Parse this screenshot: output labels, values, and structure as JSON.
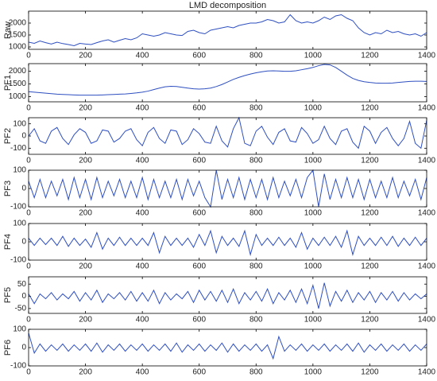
{
  "chart_data": [
    {
      "type": "line",
      "title": "LMD decomposition",
      "ylabel": "Raw",
      "color": "#2e4fc0",
      "x": [
        0,
        20,
        40,
        60,
        80,
        100,
        120,
        140,
        160,
        180,
        200,
        220,
        240,
        260,
        280,
        300,
        320,
        340,
        360,
        380,
        400,
        420,
        440,
        460,
        480,
        500,
        520,
        540,
        560,
        580,
        600,
        620,
        640,
        660,
        680,
        700,
        720,
        740,
        760,
        780,
        800,
        820,
        840,
        860,
        880,
        900,
        920,
        940,
        960,
        980,
        1000,
        1020,
        1040,
        1060,
        1080,
        1100,
        1120,
        1140,
        1160,
        1180,
        1200,
        1220,
        1240,
        1260,
        1280,
        1300,
        1320,
        1340,
        1360,
        1380,
        1400
      ],
      "values": [
        1200,
        1150,
        1250,
        1180,
        1120,
        1200,
        1140,
        1100,
        1050,
        1150,
        1120,
        1100,
        1180,
        1250,
        1300,
        1200,
        1280,
        1350,
        1300,
        1380,
        1550,
        1500,
        1450,
        1500,
        1600,
        1550,
        1500,
        1480,
        1650,
        1700,
        1600,
        1550,
        1700,
        1750,
        1800,
        1850,
        1800,
        1900,
        1950,
        2000,
        2000,
        2050,
        2150,
        2100,
        2000,
        2050,
        2350,
        2100,
        2000,
        2050,
        2000,
        2100,
        2250,
        2150,
        2300,
        2350,
        2200,
        2100,
        1800,
        1600,
        1500,
        1600,
        1550,
        1700,
        1600,
        1650,
        1550,
        1500,
        1550,
        1450,
        1600
      ],
      "xlim": [
        0,
        1400
      ],
      "xticks": [
        0,
        200,
        400,
        600,
        800,
        1000,
        1200,
        1400
      ],
      "ylim": [
        900,
        2500
      ],
      "yticks": [
        1000,
        1500,
        2000
      ]
    },
    {
      "type": "line",
      "ylabel": "PF1",
      "color": "#2e4fc0",
      "x": [
        0,
        20,
        40,
        60,
        80,
        100,
        120,
        140,
        160,
        180,
        200,
        220,
        240,
        260,
        280,
        300,
        320,
        340,
        360,
        380,
        400,
        420,
        440,
        460,
        480,
        500,
        520,
        540,
        560,
        580,
        600,
        620,
        640,
        660,
        680,
        700,
        720,
        740,
        760,
        780,
        800,
        820,
        840,
        860,
        880,
        900,
        920,
        940,
        960,
        980,
        1000,
        1020,
        1040,
        1060,
        1080,
        1100,
        1120,
        1140,
        1160,
        1180,
        1200,
        1220,
        1240,
        1260,
        1280,
        1300,
        1320,
        1340,
        1360,
        1380,
        1400
      ],
      "values": [
        1200,
        1180,
        1160,
        1140,
        1120,
        1100,
        1090,
        1080,
        1070,
        1060,
        1060,
        1060,
        1060,
        1070,
        1080,
        1090,
        1100,
        1110,
        1130,
        1150,
        1180,
        1220,
        1280,
        1340,
        1390,
        1410,
        1400,
        1370,
        1340,
        1310,
        1300,
        1310,
        1340,
        1400,
        1480,
        1580,
        1680,
        1760,
        1830,
        1890,
        1940,
        1980,
        2010,
        2020,
        2010,
        2000,
        2000,
        2020,
        2060,
        2100,
        2150,
        2220,
        2270,
        2250,
        2150,
        2000,
        1850,
        1720,
        1640,
        1590,
        1560,
        1540,
        1530,
        1530,
        1540,
        1560,
        1580,
        1600,
        1610,
        1610,
        1600
      ],
      "xlim": [
        0,
        1400
      ],
      "xticks": [
        0,
        200,
        400,
        600,
        800,
        1000,
        1200,
        1400
      ],
      "ylim": [
        800,
        2300
      ],
      "yticks": [
        1000,
        1500,
        2000
      ]
    },
    {
      "type": "line",
      "ylabel": "PF2",
      "color": "#2e4fc0",
      "x": [
        0,
        20,
        40,
        60,
        80,
        100,
        120,
        140,
        160,
        180,
        200,
        220,
        240,
        260,
        280,
        300,
        320,
        340,
        360,
        380,
        400,
        420,
        440,
        460,
        480,
        500,
        520,
        540,
        560,
        580,
        600,
        620,
        640,
        660,
        680,
        700,
        720,
        740,
        760,
        780,
        800,
        820,
        840,
        860,
        880,
        900,
        920,
        940,
        960,
        980,
        1000,
        1020,
        1040,
        1060,
        1080,
        1100,
        1120,
        1140,
        1160,
        1180,
        1200,
        1220,
        1240,
        1260,
        1280,
        1300,
        1320,
        1340,
        1360,
        1380,
        1400
      ],
      "values": [
        0,
        60,
        -40,
        -60,
        40,
        70,
        -20,
        -70,
        10,
        60,
        30,
        -60,
        -40,
        50,
        40,
        -50,
        -20,
        40,
        60,
        -30,
        -80,
        30,
        70,
        -20,
        -60,
        50,
        40,
        -70,
        -30,
        60,
        20,
        -50,
        -60,
        80,
        -40,
        -90,
        60,
        150,
        -60,
        -80,
        40,
        80,
        -10,
        -70,
        30,
        60,
        -40,
        -50,
        70,
        20,
        -60,
        -30,
        80,
        -20,
        -70,
        40,
        60,
        -50,
        -100,
        80,
        40,
        -60,
        30,
        70,
        -20,
        -80,
        -20,
        120,
        -60,
        -100,
        130
      ],
      "xlim": [
        0,
        1400
      ],
      "xticks": [
        0,
        200,
        400,
        600,
        800,
        1000,
        1200,
        1400
      ],
      "ylim": [
        -150,
        150
      ],
      "yticks": [
        -100,
        0,
        100
      ]
    },
    {
      "type": "line",
      "ylabel": "PF3",
      "color": "#2e4fc0",
      "x": [
        0,
        20,
        40,
        60,
        80,
        100,
        120,
        140,
        160,
        180,
        200,
        220,
        240,
        260,
        280,
        300,
        320,
        340,
        360,
        380,
        400,
        420,
        440,
        460,
        480,
        500,
        520,
        540,
        560,
        580,
        600,
        620,
        640,
        660,
        680,
        700,
        720,
        740,
        760,
        780,
        800,
        820,
        840,
        860,
        880,
        900,
        920,
        940,
        960,
        980,
        1000,
        1020,
        1040,
        1060,
        1080,
        1100,
        1120,
        1140,
        1160,
        1180,
        1200,
        1220,
        1240,
        1260,
        1280,
        1300,
        1320,
        1340,
        1360,
        1380,
        1400
      ],
      "values": [
        40,
        -50,
        50,
        -50,
        40,
        -40,
        50,
        -60,
        60,
        -50,
        50,
        -60,
        60,
        -50,
        40,
        -40,
        50,
        -50,
        40,
        -50,
        60,
        -60,
        50,
        -50,
        40,
        -50,
        50,
        -60,
        50,
        -40,
        40,
        -50,
        -100,
        100,
        -60,
        50,
        -50,
        60,
        -60,
        50,
        -50,
        50,
        -60,
        60,
        -50,
        40,
        -40,
        50,
        -50,
        60,
        100,
        -100,
        80,
        -60,
        50,
        -50,
        60,
        -50,
        50,
        -60,
        50,
        -50,
        40,
        -50,
        60,
        -50,
        40,
        -40,
        50,
        -60,
        60
      ],
      "xlim": [
        0,
        1400
      ],
      "xticks": [
        0,
        200,
        400,
        600,
        800,
        1000,
        1200,
        1400
      ],
      "ylim": [
        -100,
        100
      ],
      "yticks": [
        -100,
        0,
        100
      ]
    },
    {
      "type": "line",
      "ylabel": "PF4",
      "color": "#2e4fc0",
      "x": [
        0,
        20,
        40,
        60,
        80,
        100,
        120,
        140,
        160,
        180,
        200,
        220,
        240,
        260,
        280,
        300,
        320,
        340,
        360,
        380,
        400,
        420,
        440,
        460,
        480,
        500,
        520,
        540,
        560,
        580,
        600,
        620,
        640,
        660,
        680,
        700,
        720,
        740,
        760,
        780,
        800,
        820,
        840,
        860,
        880,
        900,
        920,
        940,
        960,
        980,
        1000,
        1020,
        1040,
        1060,
        1080,
        1100,
        1120,
        1140,
        1160,
        1180,
        1200,
        1220,
        1240,
        1260,
        1280,
        1300,
        1320,
        1340,
        1360,
        1380,
        1400
      ],
      "values": [
        20,
        -20,
        20,
        -15,
        20,
        -20,
        30,
        -25,
        20,
        -20,
        15,
        -30,
        50,
        -40,
        20,
        -20,
        25,
        -20,
        20,
        -20,
        20,
        -20,
        50,
        -60,
        30,
        -20,
        20,
        -20,
        20,
        -30,
        40,
        -20,
        60,
        -60,
        30,
        -20,
        20,
        -25,
        60,
        -70,
        40,
        -20,
        20,
        -20,
        25,
        -20,
        20,
        -30,
        50,
        -40,
        20,
        -20,
        25,
        -20,
        30,
        -30,
        60,
        -70,
        30,
        -20,
        20,
        -20,
        25,
        -20,
        30,
        -25,
        20,
        -20,
        25,
        -20,
        20
      ],
      "xlim": [
        0,
        1400
      ],
      "xticks": [
        0,
        200,
        400,
        600,
        800,
        1000,
        1200,
        1400
      ],
      "ylim": [
        -100,
        100
      ],
      "yticks": [
        -100,
        0,
        100
      ]
    },
    {
      "type": "line",
      "ylabel": "PF5",
      "color": "#2e4fc0",
      "x": [
        0,
        20,
        40,
        60,
        80,
        100,
        120,
        140,
        160,
        180,
        200,
        220,
        240,
        260,
        280,
        300,
        320,
        340,
        360,
        380,
        400,
        420,
        440,
        460,
        480,
        500,
        520,
        540,
        560,
        580,
        600,
        620,
        640,
        660,
        680,
        700,
        720,
        740,
        760,
        780,
        800,
        820,
        840,
        860,
        880,
        900,
        920,
        940,
        960,
        980,
        1000,
        1020,
        1040,
        1060,
        1080,
        1100,
        1120,
        1140,
        1160,
        1180,
        1200,
        1220,
        1240,
        1260,
        1280,
        1300,
        1320,
        1340,
        1360,
        1380,
        1400
      ],
      "values": [
        10,
        -30,
        10,
        -10,
        15,
        -15,
        10,
        -10,
        20,
        -20,
        15,
        -15,
        25,
        -25,
        10,
        -10,
        15,
        -15,
        20,
        -20,
        15,
        -20,
        25,
        -30,
        15,
        -15,
        10,
        -10,
        20,
        -25,
        25,
        -15,
        20,
        -20,
        25,
        -25,
        30,
        -30,
        15,
        -15,
        20,
        -20,
        30,
        -30,
        15,
        -15,
        25,
        -25,
        30,
        -30,
        45,
        -50,
        55,
        -40,
        20,
        -20,
        25,
        -25,
        15,
        -15,
        20,
        -25,
        15,
        -15,
        20,
        -20,
        15,
        -15,
        10,
        -10,
        10
      ],
      "xlim": [
        0,
        1400
      ],
      "xticks": [
        0,
        200,
        400,
        600,
        800,
        1000,
        1200,
        1400
      ],
      "ylim": [
        -70,
        80
      ],
      "yticks": [
        -50,
        0,
        50
      ]
    },
    {
      "type": "line",
      "ylabel": "PF6",
      "color": "#2e4fc0",
      "x": [
        0,
        20,
        40,
        60,
        80,
        100,
        120,
        140,
        160,
        180,
        200,
        220,
        240,
        260,
        280,
        300,
        320,
        340,
        360,
        380,
        400,
        420,
        440,
        460,
        480,
        500,
        520,
        540,
        560,
        580,
        600,
        620,
        640,
        660,
        680,
        700,
        720,
        740,
        760,
        780,
        800,
        820,
        840,
        860,
        880,
        900,
        920,
        940,
        960,
        980,
        1000,
        1020,
        1040,
        1060,
        1080,
        1100,
        1120,
        1140,
        1160,
        1180,
        1200,
        1220,
        1240,
        1260,
        1280,
        1300,
        1320,
        1340,
        1360,
        1380,
        1400
      ],
      "values": [
        80,
        -30,
        20,
        -20,
        15,
        -15,
        20,
        -20,
        15,
        -15,
        20,
        -20,
        25,
        -25,
        15,
        -15,
        20,
        -20,
        15,
        -15,
        20,
        -20,
        15,
        -15,
        20,
        -20,
        25,
        -25,
        15,
        -15,
        20,
        -20,
        15,
        -15,
        25,
        -25,
        20,
        -20,
        15,
        -15,
        20,
        -20,
        15,
        -60,
        60,
        -20,
        15,
        -15,
        20,
        -20,
        15,
        -15,
        20,
        -20,
        15,
        -15,
        20,
        -20,
        25,
        -25,
        15,
        -15,
        20,
        -20,
        15,
        -15,
        20,
        -20,
        15,
        -15,
        20
      ],
      "xlim": [
        0,
        1400
      ],
      "xticks": [
        0,
        200,
        400,
        600,
        800,
        1000,
        1200,
        1400
      ],
      "ylim": [
        -100,
        100
      ],
      "yticks": [
        -100,
        0,
        100
      ]
    }
  ]
}
